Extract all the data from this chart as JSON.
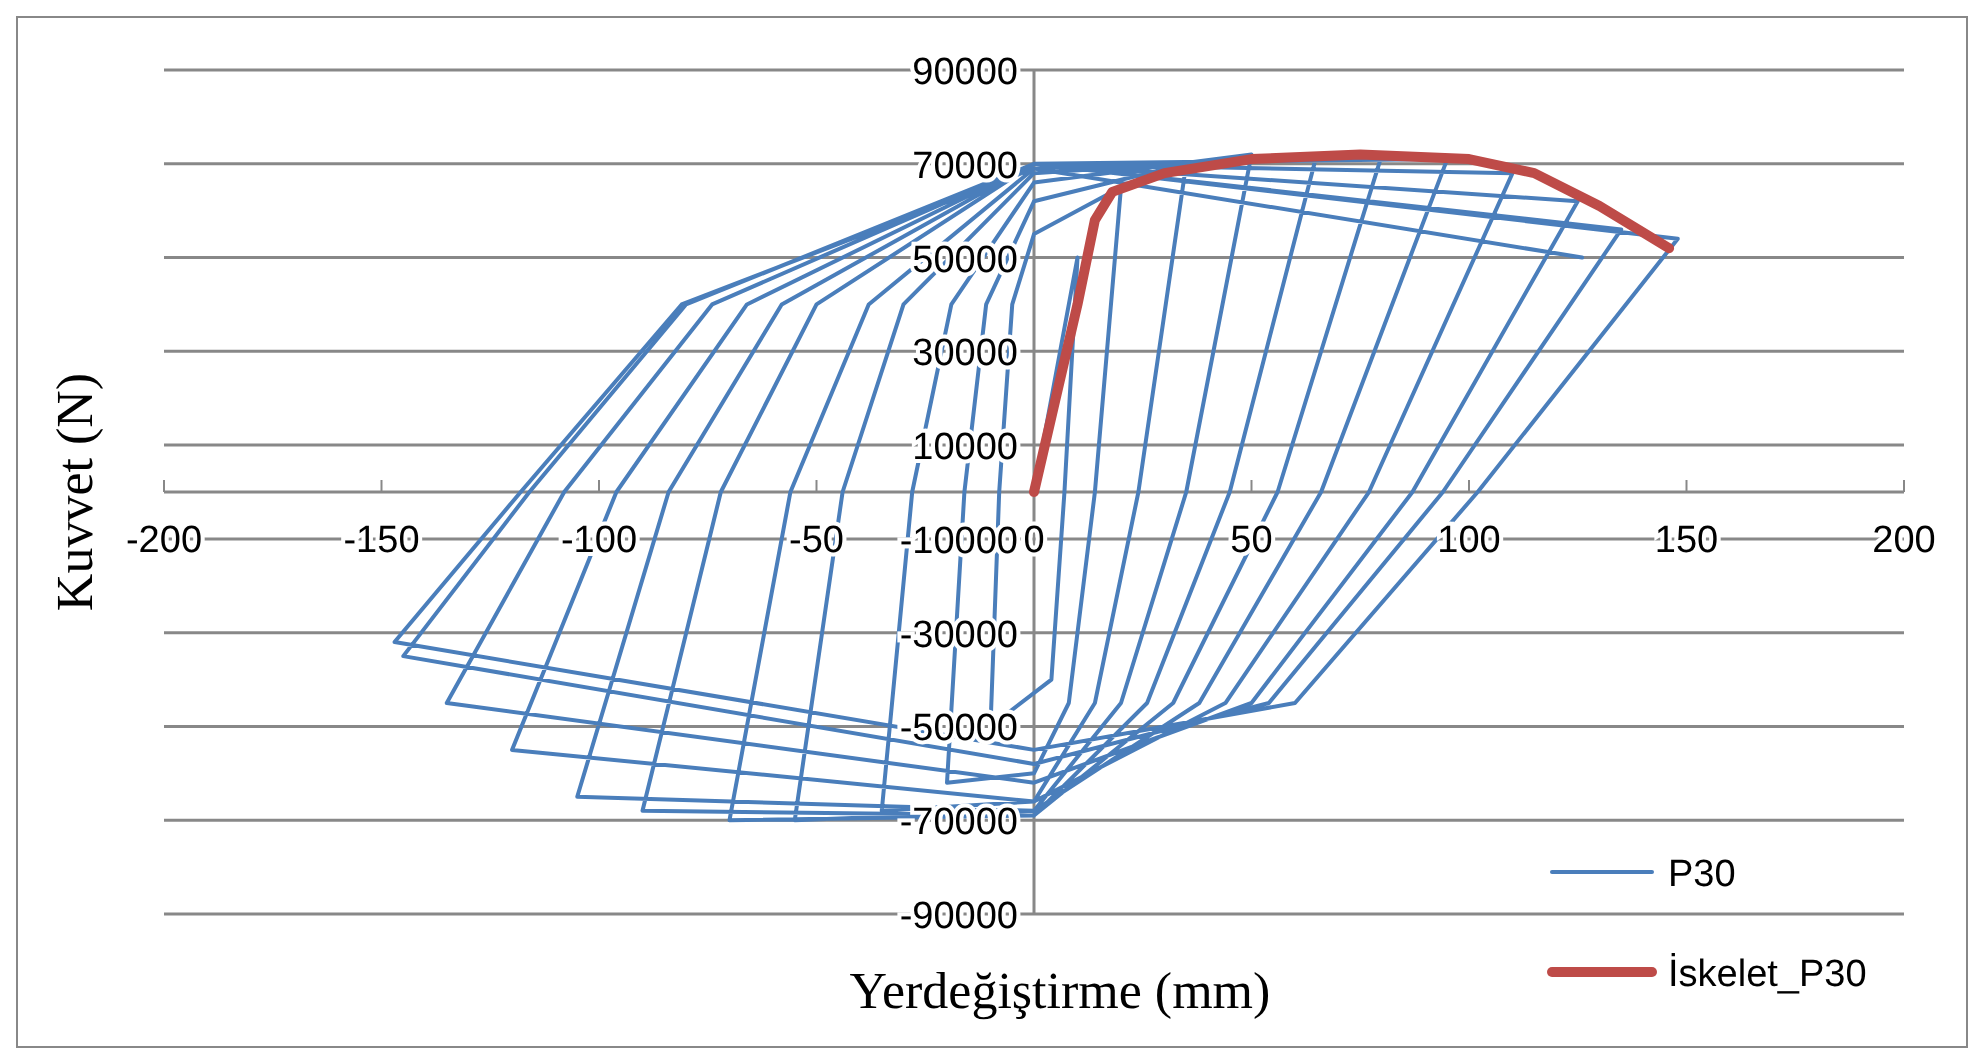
{
  "chart_data": {
    "type": "line",
    "xlabel": "Yerdeğiştirme (mm)",
    "ylabel": "Kuvvet (N)",
    "xlim": [
      -200,
      200
    ],
    "xticks": [
      -200,
      -150,
      -100,
      -50,
      0,
      50,
      100,
      150,
      200
    ],
    "ylim": [
      -90000,
      90000
    ],
    "yticks": [
      -90000,
      -70000,
      -50000,
      -30000,
      -10000,
      10000,
      30000,
      50000,
      70000,
      90000
    ],
    "grid": "y",
    "legend": "bottom right",
    "marker": "none",
    "line_style": "solid",
    "series": [
      {
        "name": "P30",
        "color": "#4a7ebb",
        "x": [
          0,
          10,
          7,
          4,
          -10,
          -8,
          -5,
          0,
          20,
          14,
          8,
          0,
          -20,
          -16,
          -11,
          0,
          35,
          24,
          14,
          0,
          -35,
          -28,
          -19,
          0,
          50,
          35,
          20,
          0,
          -55,
          -44,
          -30,
          0,
          65,
          45,
          26,
          0,
          -70,
          -56,
          -38,
          0,
          80,
          56,
          32,
          0,
          -90,
          -72,
          -50,
          0,
          95,
          66,
          38,
          0,
          -105,
          -84,
          -58,
          0,
          110,
          77,
          44,
          0,
          -120,
          -96,
          -66,
          0,
          125,
          87,
          50,
          0,
          -135,
          -108,
          -74,
          0,
          135,
          94,
          54,
          0,
          -145,
          -116,
          -80,
          0,
          148,
          102,
          60,
          0,
          -147,
          -118,
          -81,
          0,
          126
        ],
        "values": [
          0,
          50000,
          0,
          -40000,
          -50000,
          0,
          40000,
          55000,
          65000,
          0,
          -45000,
          -60000,
          -62000,
          0,
          40000,
          62000,
          70000,
          0,
          -45000,
          -66000,
          -68000,
          0,
          40000,
          66000,
          72000,
          0,
          -45000,
          -68000,
          -70000,
          0,
          40000,
          68000,
          72000,
          0,
          -45000,
          -69000,
          -70000,
          0,
          40000,
          69000,
          72000,
          0,
          -45000,
          -69000,
          -68000,
          0,
          40000,
          70000,
          71000,
          0,
          -45000,
          -68000,
          -65000,
          0,
          40000,
          70000,
          68000,
          0,
          -45000,
          -66000,
          -55000,
          0,
          40000,
          70000,
          62000,
          0,
          -45000,
          -62000,
          -45000,
          0,
          40000,
          70000,
          56000,
          0,
          -45000,
          -58000,
          -35000,
          0,
          40000,
          70000,
          54000,
          0,
          -45000,
          -55000,
          -32000,
          0,
          40000,
          69000,
          50000
        ]
      },
      {
        "name": "İskelet_P30",
        "color": "#be4b48",
        "x": [
          0,
          5,
          10,
          14,
          18,
          30,
          50,
          75,
          100,
          115,
          130,
          146
        ],
        "values": [
          0,
          20000,
          40000,
          58000,
          64000,
          68000,
          71000,
          72000,
          71000,
          68000,
          61000,
          52000
        ]
      }
    ]
  }
}
